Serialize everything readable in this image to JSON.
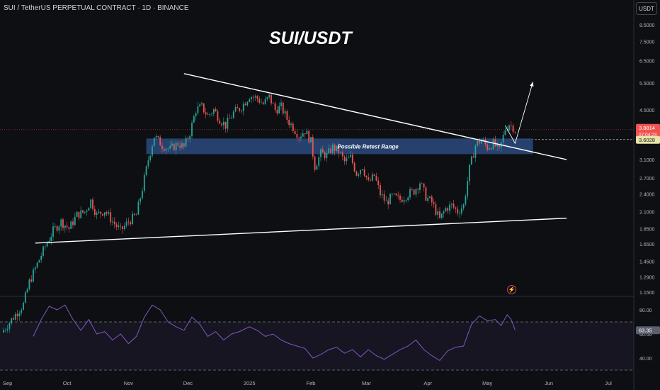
{
  "header": {
    "title": "SUI / TetherUS PERPETUAL CONTRACT · 1D · BINANCE"
  },
  "main_title": "SUI/USDT",
  "currency_button": "USDT",
  "bolt_icon": "lightning-bolt-icon",
  "colors": {
    "up": "#26a69a",
    "down": "#ef5350",
    "rsi": "#7e57c2",
    "zone": "#2a4a7f",
    "background": "#0e0f12"
  },
  "chart_data": [
    {
      "type": "candlestick",
      "title": "SUI/USDT",
      "scale": "log",
      "y_ticks": [
        "8.5000",
        "7.5000",
        "6.5000",
        "5.5000",
        "4.5000",
        "3.1000",
        "2.7000",
        "2.4000",
        "2.1000",
        "1.8500",
        "1.6500",
        "1.4500",
        "1.2900",
        "1.1500"
      ],
      "x_ticks": [
        "Sep",
        "Oct",
        "Nov",
        "Dec",
        "2025",
        "Feb",
        "Mar",
        "Apr",
        "May",
        "Jun",
        "Jul"
      ],
      "price_label": {
        "value": "3.8814",
        "countdown": "07:04:23"
      },
      "level_label": "3.6028",
      "annotation": "Possible Retest Range",
      "zone": {
        "low": 3.23,
        "high": 3.63,
        "start": "2024-11-10",
        "end": "2025-05-24"
      },
      "trendlines": [
        {
          "name": "upper",
          "from": [
            "2024-11-29",
            5.9
          ],
          "to": [
            "2025-06-10",
            3.1
          ]
        },
        {
          "name": "lower",
          "from": [
            "2024-09-15",
            1.66
          ],
          "to": [
            "2025-06-10",
            2.0
          ]
        }
      ],
      "projection": [
        [
          "2025-05-10",
          4.0
        ],
        [
          "2025-05-15",
          3.5
        ],
        [
          "2025-05-24",
          5.55
        ]
      ],
      "close_path": [
        [
          "2024-08-29",
          0.85
        ],
        [
          "2024-09-09",
          1.05
        ],
        [
          "2024-09-12",
          1.24
        ],
        [
          "2024-09-16",
          1.42
        ],
        [
          "2024-09-20",
          1.62
        ],
        [
          "2024-09-24",
          1.82
        ],
        [
          "2024-09-28",
          1.95
        ],
        [
          "2024-10-02",
          1.85
        ],
        [
          "2024-10-06",
          2.05
        ],
        [
          "2024-10-10",
          2.1
        ],
        [
          "2024-10-13",
          2.28
        ],
        [
          "2024-10-16",
          2.05
        ],
        [
          "2024-10-20",
          2.12
        ],
        [
          "2024-10-24",
          1.95
        ],
        [
          "2024-10-28",
          1.82
        ],
        [
          "2024-11-01",
          1.95
        ],
        [
          "2024-11-05",
          2.05
        ],
        [
          "2024-11-08",
          2.5
        ],
        [
          "2024-11-11",
          3.1
        ],
        [
          "2024-11-14",
          3.7
        ],
        [
          "2024-11-18",
          3.45
        ],
        [
          "2024-11-22",
          3.35
        ],
        [
          "2024-11-26",
          3.5
        ],
        [
          "2024-11-29",
          3.4
        ],
        [
          "2024-12-02",
          3.8
        ],
        [
          "2024-12-05",
          4.5
        ],
        [
          "2024-12-08",
          4.6
        ],
        [
          "2024-12-11",
          4.3
        ],
        [
          "2024-12-14",
          4.5
        ],
        [
          "2024-12-17",
          4.2
        ],
        [
          "2024-12-20",
          4.0
        ],
        [
          "2024-12-24",
          4.4
        ],
        [
          "2024-12-28",
          4.6
        ],
        [
          "2025-01-01",
          5.0
        ],
        [
          "2025-01-05",
          4.9
        ],
        [
          "2025-01-08",
          4.7
        ],
        [
          "2025-01-11",
          4.95
        ],
        [
          "2025-01-14",
          4.5
        ],
        [
          "2025-01-17",
          4.6
        ],
        [
          "2025-01-20",
          4.2
        ],
        [
          "2025-01-23",
          3.95
        ],
        [
          "2025-01-26",
          3.7
        ],
        [
          "2025-01-29",
          3.85
        ],
        [
          "2025-02-01",
          3.55
        ],
        [
          "2025-02-03",
          2.95
        ],
        [
          "2025-02-06",
          3.25
        ],
        [
          "2025-02-09",
          3.2
        ],
        [
          "2025-02-12",
          3.4
        ],
        [
          "2025-02-15",
          3.3
        ],
        [
          "2025-02-18",
          3.05
        ],
        [
          "2025-02-21",
          3.15
        ],
        [
          "2025-02-24",
          2.8
        ],
        [
          "2025-02-27",
          2.95
        ],
        [
          "2025-03-02",
          2.6
        ],
        [
          "2025-03-05",
          2.75
        ],
        [
          "2025-03-08",
          2.4
        ],
        [
          "2025-03-11",
          2.25
        ],
        [
          "2025-03-14",
          2.35
        ],
        [
          "2025-03-18",
          2.3
        ],
        [
          "2025-03-22",
          2.4
        ],
        [
          "2025-03-25",
          2.45
        ],
        [
          "2025-03-28",
          2.62
        ],
        [
          "2025-03-31",
          2.35
        ],
        [
          "2025-04-03",
          2.25
        ],
        [
          "2025-04-07",
          1.98
        ],
        [
          "2025-04-10",
          2.15
        ],
        [
          "2025-04-13",
          2.2
        ],
        [
          "2025-04-16",
          2.1
        ],
        [
          "2025-04-19",
          2.2
        ],
        [
          "2025-04-22",
          2.9
        ],
        [
          "2025-04-25",
          3.45
        ],
        [
          "2025-04-28",
          3.6
        ],
        [
          "2025-05-01",
          3.4
        ],
        [
          "2025-05-04",
          3.5
        ],
        [
          "2025-05-07",
          3.3
        ],
        [
          "2025-05-10",
          3.9
        ],
        [
          "2025-05-12",
          4.05
        ],
        [
          "2025-05-14",
          3.95
        ],
        [
          "2025-05-15",
          3.88
        ]
      ]
    },
    {
      "type": "line",
      "name": "RSI",
      "y_ticks": [
        "80.00",
        "60.00",
        "40.00"
      ],
      "bands": [
        70,
        30
      ],
      "current_value": "63.35",
      "values": [
        [
          "2024-09-14",
          58
        ],
        [
          "2024-09-18",
          72
        ],
        [
          "2024-09-22",
          83
        ],
        [
          "2024-09-26",
          80
        ],
        [
          "2024-09-30",
          84
        ],
        [
          "2024-10-04",
          72
        ],
        [
          "2024-10-08",
          63
        ],
        [
          "2024-10-12",
          72
        ],
        [
          "2024-10-16",
          60
        ],
        [
          "2024-10-20",
          62
        ],
        [
          "2024-10-24",
          55
        ],
        [
          "2024-10-28",
          60
        ],
        [
          "2024-11-01",
          52
        ],
        [
          "2024-11-05",
          58
        ],
        [
          "2024-11-09",
          74
        ],
        [
          "2024-11-13",
          84
        ],
        [
          "2024-11-17",
          80
        ],
        [
          "2024-11-21",
          70
        ],
        [
          "2024-11-25",
          66
        ],
        [
          "2024-11-29",
          63
        ],
        [
          "2024-12-03",
          74
        ],
        [
          "2024-12-07",
          68
        ],
        [
          "2024-12-11",
          58
        ],
        [
          "2024-12-15",
          62
        ],
        [
          "2024-12-19",
          55
        ],
        [
          "2024-12-23",
          60
        ],
        [
          "2024-12-27",
          62
        ],
        [
          "2025-01-01",
          66
        ],
        [
          "2025-01-05",
          63
        ],
        [
          "2025-01-09",
          58
        ],
        [
          "2025-01-13",
          60
        ],
        [
          "2025-01-17",
          55
        ],
        [
          "2025-01-21",
          52
        ],
        [
          "2025-01-25",
          50
        ],
        [
          "2025-01-29",
          48
        ],
        [
          "2025-02-02",
          40
        ],
        [
          "2025-02-06",
          43
        ],
        [
          "2025-02-10",
          47
        ],
        [
          "2025-02-14",
          49
        ],
        [
          "2025-02-18",
          44
        ],
        [
          "2025-02-22",
          47
        ],
        [
          "2025-02-26",
          41
        ],
        [
          "2025-03-02",
          47
        ],
        [
          "2025-03-06",
          42
        ],
        [
          "2025-03-10",
          39
        ],
        [
          "2025-03-14",
          43
        ],
        [
          "2025-03-18",
          47
        ],
        [
          "2025-03-22",
          50
        ],
        [
          "2025-03-26",
          55
        ],
        [
          "2025-03-30",
          47
        ],
        [
          "2025-04-03",
          42
        ],
        [
          "2025-04-07",
          38
        ],
        [
          "2025-04-11",
          46
        ],
        [
          "2025-04-15",
          49
        ],
        [
          "2025-04-19",
          50
        ],
        [
          "2025-04-23",
          68
        ],
        [
          "2025-04-27",
          75
        ],
        [
          "2025-05-01",
          71
        ],
        [
          "2025-05-05",
          72
        ],
        [
          "2025-05-08",
          67
        ],
        [
          "2025-05-11",
          76
        ],
        [
          "2025-05-13",
          72
        ],
        [
          "2025-05-15",
          63.35
        ]
      ]
    }
  ]
}
